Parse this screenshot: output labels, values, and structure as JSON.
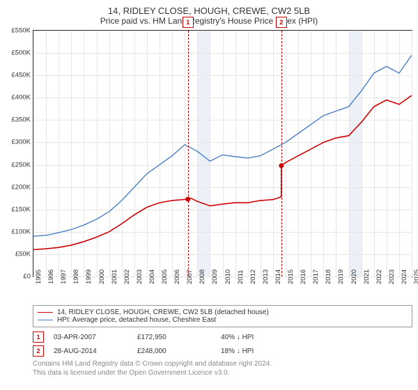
{
  "title": "14, RIDLEY CLOSE, HOUGH, CREWE, CW2 5LB",
  "subtitle": "Price paid vs. HM Land Registry's House Price Index (HPI)",
  "chart": {
    "type": "line",
    "background": "#ffffff",
    "grid_color": "#e6e6e6",
    "axis_color": "#333333",
    "shade_color": "#ecf1f8",
    "xlim": [
      1995,
      2025
    ],
    "ylim": [
      0,
      550000
    ],
    "ytick_step": 50000,
    "ytick_prefix": "£",
    "ytick_suffix": "K",
    "xticks": [
      1995,
      1996,
      1997,
      1998,
      1999,
      2000,
      2001,
      2002,
      2003,
      2004,
      2005,
      2006,
      2007,
      2008,
      2009,
      2010,
      2011,
      2012,
      2013,
      2014,
      2015,
      2016,
      2017,
      2018,
      2019,
      2020,
      2021,
      2022,
      2023,
      2024,
      2025
    ],
    "series": [
      {
        "name": "subject",
        "label": "14, RIDLEY CLOSE, HOUGH, CREWE, CW2 5LB (detached house)",
        "color": "#cc0000",
        "width": 1.6,
        "data": [
          [
            1995,
            60000
          ],
          [
            1996,
            62000
          ],
          [
            1997,
            65000
          ],
          [
            1998,
            70000
          ],
          [
            1999,
            78000
          ],
          [
            2000,
            88000
          ],
          [
            2001,
            100000
          ],
          [
            2002,
            118000
          ],
          [
            2003,
            138000
          ],
          [
            2004,
            155000
          ],
          [
            2005,
            165000
          ],
          [
            2006,
            170000
          ],
          [
            2007.25,
            172950
          ],
          [
            2007.5,
            175000
          ],
          [
            2008,
            168000
          ],
          [
            2009,
            158000
          ],
          [
            2010,
            162000
          ],
          [
            2011,
            165000
          ],
          [
            2012,
            165000
          ],
          [
            2013,
            170000
          ],
          [
            2014,
            172000
          ],
          [
            2014.65,
            178000
          ],
          [
            2014.66,
            248000
          ],
          [
            2015,
            255000
          ],
          [
            2016,
            270000
          ],
          [
            2017,
            285000
          ],
          [
            2018,
            300000
          ],
          [
            2019,
            310000
          ],
          [
            2020,
            315000
          ],
          [
            2021,
            345000
          ],
          [
            2022,
            380000
          ],
          [
            2023,
            395000
          ],
          [
            2024,
            385000
          ],
          [
            2025,
            405000
          ]
        ]
      },
      {
        "name": "hpi",
        "label": "HPI: Average price, detached house, Cheshire East",
        "color": "#4a7fc2",
        "width": 1.4,
        "data": [
          [
            1995,
            90000
          ],
          [
            1996,
            92000
          ],
          [
            1997,
            98000
          ],
          [
            1998,
            105000
          ],
          [
            1999,
            115000
          ],
          [
            2000,
            128000
          ],
          [
            2001,
            145000
          ],
          [
            2002,
            170000
          ],
          [
            2003,
            200000
          ],
          [
            2004,
            230000
          ],
          [
            2005,
            250000
          ],
          [
            2006,
            270000
          ],
          [
            2007,
            295000
          ],
          [
            2008,
            280000
          ],
          [
            2009,
            258000
          ],
          [
            2010,
            272000
          ],
          [
            2011,
            268000
          ],
          [
            2012,
            265000
          ],
          [
            2013,
            270000
          ],
          [
            2014,
            285000
          ],
          [
            2015,
            300000
          ],
          [
            2016,
            320000
          ],
          [
            2017,
            340000
          ],
          [
            2018,
            360000
          ],
          [
            2019,
            370000
          ],
          [
            2020,
            380000
          ],
          [
            2021,
            415000
          ],
          [
            2022,
            455000
          ],
          [
            2023,
            470000
          ],
          [
            2024,
            455000
          ],
          [
            2025,
            495000
          ]
        ]
      }
    ],
    "markers": [
      {
        "id": "1",
        "x": 2007.25,
        "y": 172950
      },
      {
        "id": "2",
        "x": 2014.66,
        "y": 248000
      }
    ],
    "shade_bands": [
      [
        2008,
        2009
      ],
      [
        2020,
        2021
      ]
    ]
  },
  "legend": {
    "items": [
      {
        "color": "#cc0000",
        "label": "14, RIDLEY CLOSE, HOUGH, CREWE, CW2 5LB (detached house)"
      },
      {
        "color": "#4a7fc2",
        "label": "HPI: Average price, detached house, Cheshire East"
      }
    ]
  },
  "sales": [
    {
      "id": "1",
      "date": "03-APR-2007",
      "price": "£172,950",
      "delta": "40% ↓ HPI"
    },
    {
      "id": "2",
      "date": "28-AUG-2014",
      "price": "£248,000",
      "delta": "18% ↓ HPI"
    }
  ],
  "footer1": "Contains HM Land Registry data © Crown copyright and database right 2024.",
  "footer2": "This data is licensed under the Open Government Licence v3.0."
}
